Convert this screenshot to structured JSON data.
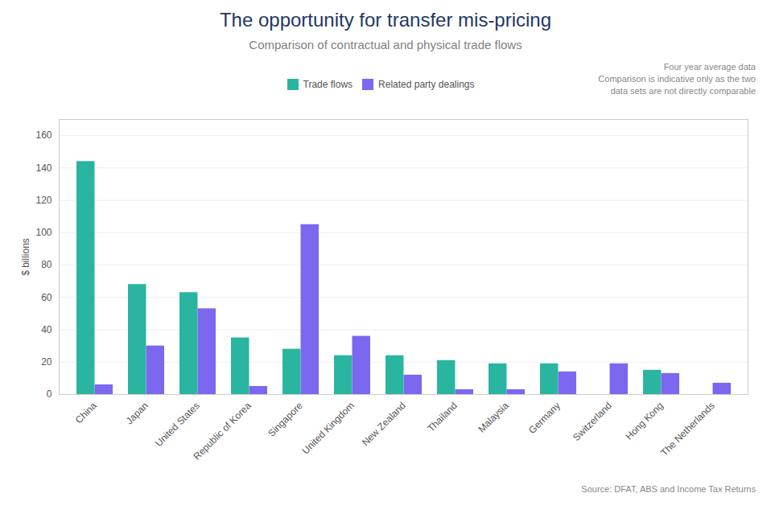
{
  "chart_data": {
    "type": "bar",
    "title": "The opportunity for transfer mis-pricing",
    "subtitle": "Comparison of contractual and physical trade flows",
    "title_color": "#1F3864",
    "subtitle_color": "#7f7f7f",
    "ylabel": "$ billions",
    "categories": [
      "China",
      "Japan",
      "United States",
      "Republic of Korea",
      "Singapore",
      "United Kingdom",
      "New Zealand",
      "Thailand",
      "Malaysia",
      "Germany",
      "Switzerland",
      "Hong Kong",
      "The Netherlands"
    ],
    "series": [
      {
        "name": "Trade flows",
        "color": "#2ab5a0",
        "values": [
          144,
          68,
          63,
          35,
          28,
          24,
          24,
          21,
          19,
          19,
          0,
          15,
          0
        ]
      },
      {
        "name": "Related party dealings",
        "color": "#7B68EE",
        "values": [
          6,
          30,
          53,
          5,
          105,
          36,
          12,
          3,
          3,
          14,
          19,
          13,
          7
        ]
      }
    ],
    "ylim": [
      0,
      170
    ],
    "yticks": [
      0,
      20,
      40,
      60,
      80,
      100,
      120,
      140,
      160
    ],
    "grid": true,
    "legend": "top",
    "note": [
      "Four year average data",
      "Comparison is indicative only as the two",
      "data sets are not directly comparable"
    ],
    "source": "Source: DFAT, ABS and Income Tax Returns"
  }
}
